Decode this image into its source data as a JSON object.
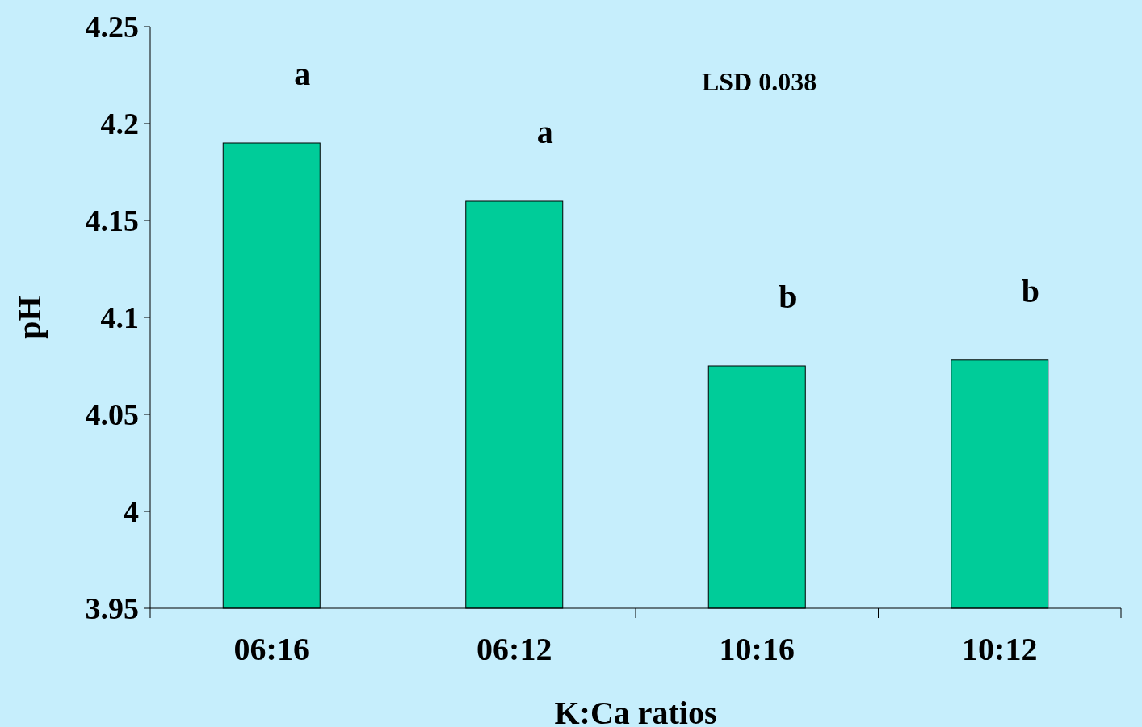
{
  "chart_data": {
    "type": "bar",
    "xlabel": "K:Ca ratios",
    "ylabel": "pH",
    "categories": [
      "06:16",
      "06:12",
      "10:16",
      "10:12"
    ],
    "values": [
      4.19,
      4.16,
      4.075,
      4.078
    ],
    "color": "#00cc99",
    "ylim": [
      3.95,
      4.25
    ],
    "yticks": [
      3.95,
      4,
      4.05,
      4.1,
      4.15,
      4.2,
      4.25
    ],
    "annotations": [
      {
        "text": "a",
        "x": "06:16",
        "y": 4.19
      },
      {
        "text": "a",
        "x": "06:12",
        "y": 4.16
      },
      {
        "text": "b",
        "x": "10:16",
        "y": 4.075
      },
      {
        "text": "b",
        "x": "10:12",
        "y": 4.078
      },
      "LSD 0.038"
    ]
  }
}
